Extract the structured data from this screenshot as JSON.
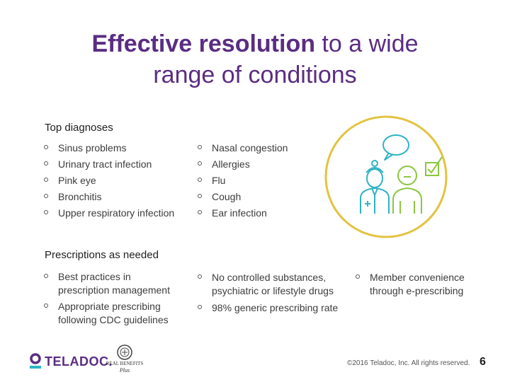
{
  "title": {
    "bold": "Effective resolution",
    "rest_line1": " to a wide",
    "line2": "range of conditions"
  },
  "diagnoses": {
    "heading": "Top diagnoses",
    "left": [
      "Sinus problems",
      "Urinary tract infection",
      "Pink eye",
      "Bronchitis",
      "Upper respiratory infection"
    ],
    "right": [
      "Nasal congestion",
      "Allergies",
      "Flu",
      "Cough",
      "Ear infection"
    ]
  },
  "prescriptions": {
    "heading": "Prescriptions as needed",
    "col1": [
      {
        "line1": "Best practices in",
        "line2": "prescription management"
      },
      {
        "line1": "Appropriate prescribing",
        "line2": "following CDC guidelines"
      }
    ],
    "col2": [
      {
        "line1": "No controlled substances,",
        "line2": "psychiatric or lifestyle drugs"
      },
      {
        "line1": "98% generic prescribing rate",
        "line2": ""
      }
    ],
    "col3": [
      {
        "line1": "Member convenience",
        "line2": "through e-prescribing"
      }
    ]
  },
  "branding": {
    "teladoc": "TELADOC.",
    "real_benefits_line1": "REAL BENEFITS",
    "real_benefits_line2": "Plus"
  },
  "footer": {
    "copyright": "©2016 Teladoc, Inc. All rights reserved.",
    "page_number": "6"
  },
  "colors": {
    "title_purple": "#5a2d82",
    "circle_yellow": "#e3c341",
    "doctor_teal": "#2fb3c5",
    "patient_green": "#8cc63f"
  }
}
